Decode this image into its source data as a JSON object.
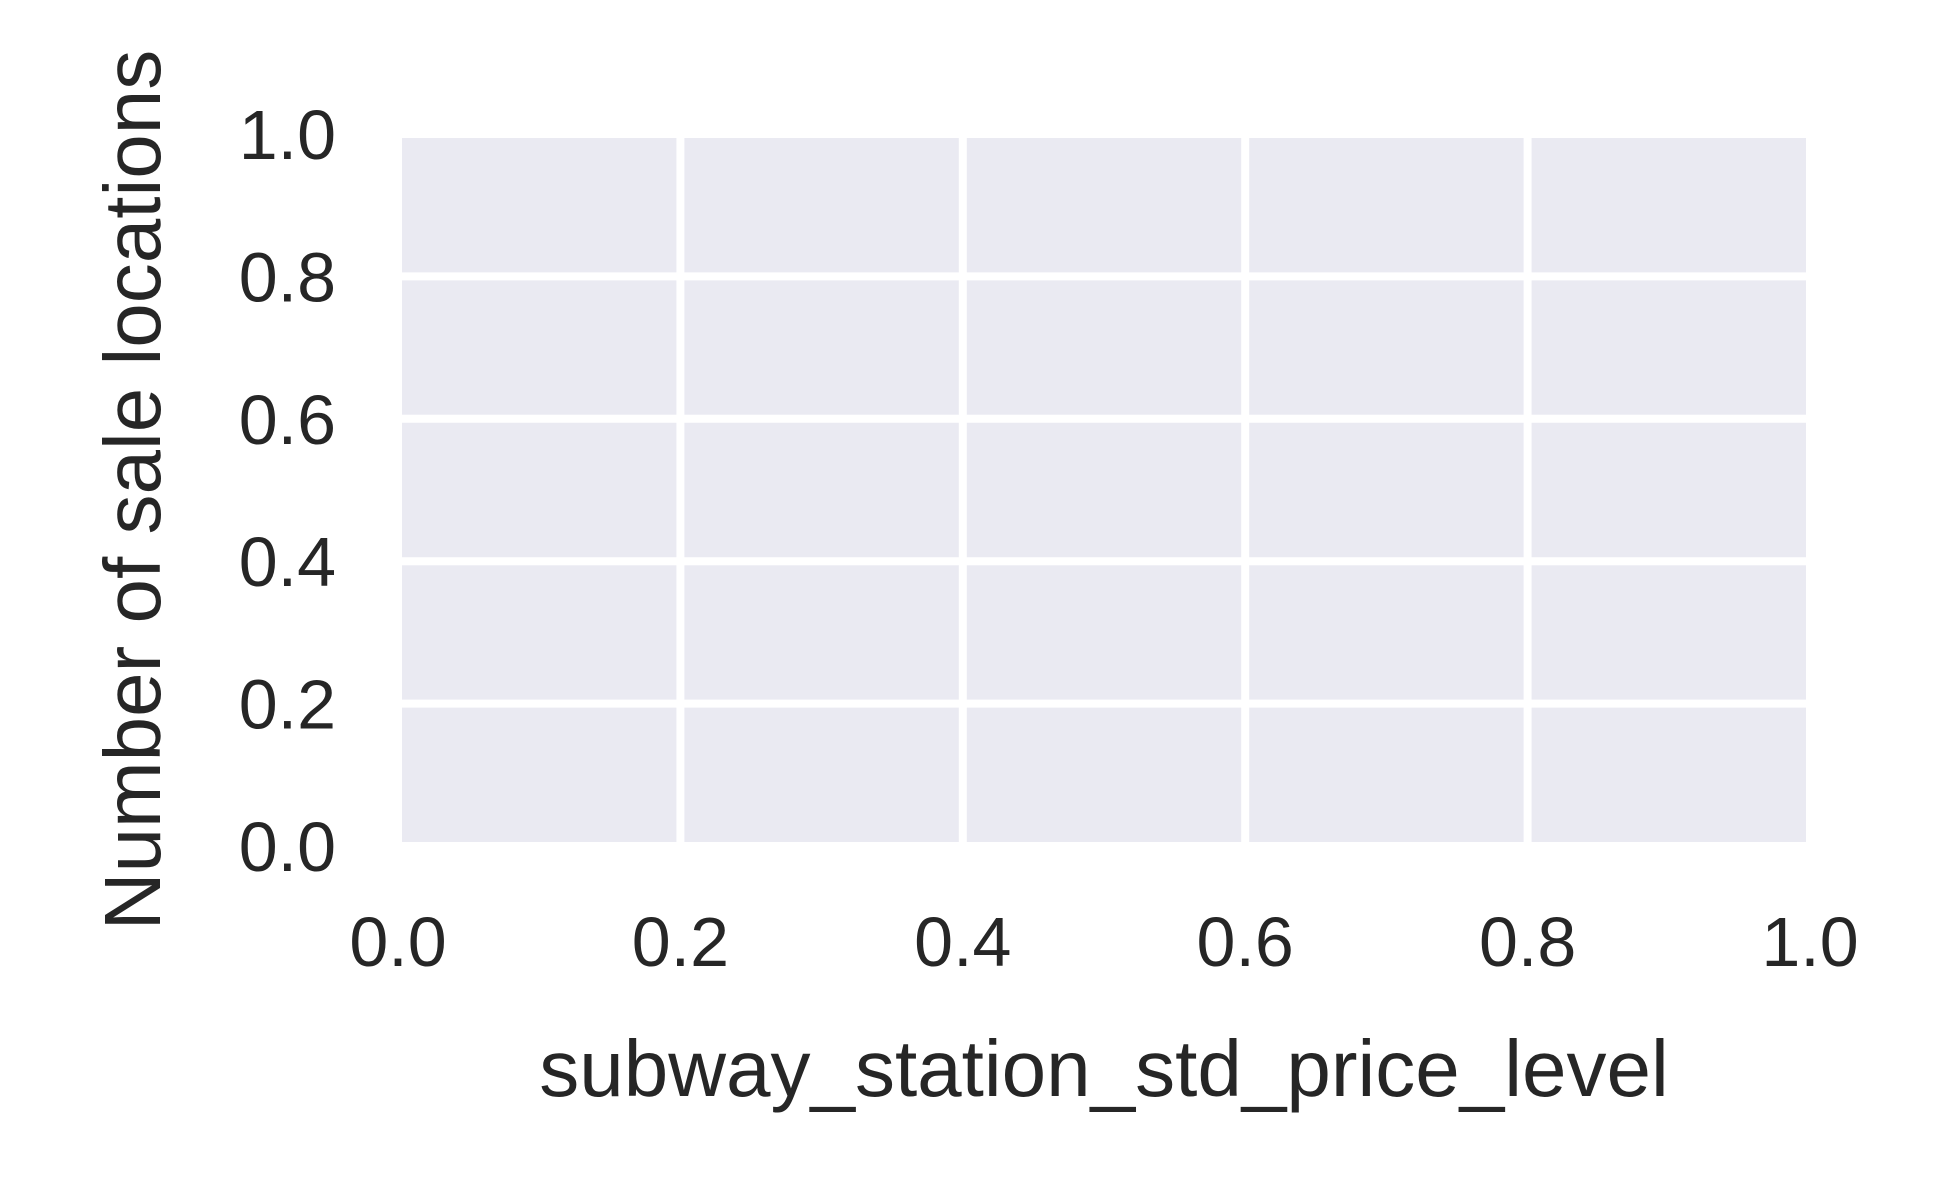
{
  "chart_data": {
    "type": "bar",
    "title": "",
    "xlabel": "subway_station_std_price_level",
    "ylabel": "Number of sale locations",
    "xlim": [
      0.0,
      1.0
    ],
    "ylim": [
      0.0,
      1.0
    ],
    "xticks": [
      0.0,
      0.2,
      0.4,
      0.6,
      0.8,
      1.0
    ],
    "yticks": [
      0.0,
      0.2,
      0.4,
      0.6,
      0.8,
      1.0
    ],
    "xtick_labels": [
      "0.0",
      "0.2",
      "0.4",
      "0.6",
      "0.8",
      "1.0"
    ],
    "ytick_labels": [
      "0.0",
      "0.2",
      "0.4",
      "0.6",
      "0.8",
      "1.0"
    ],
    "categories": [],
    "values": [],
    "grid": true,
    "style": {
      "plot_background": "#eaeaf2",
      "grid_color": "#ffffff",
      "text_color": "#262626",
      "page_background": "#ffffff"
    }
  }
}
